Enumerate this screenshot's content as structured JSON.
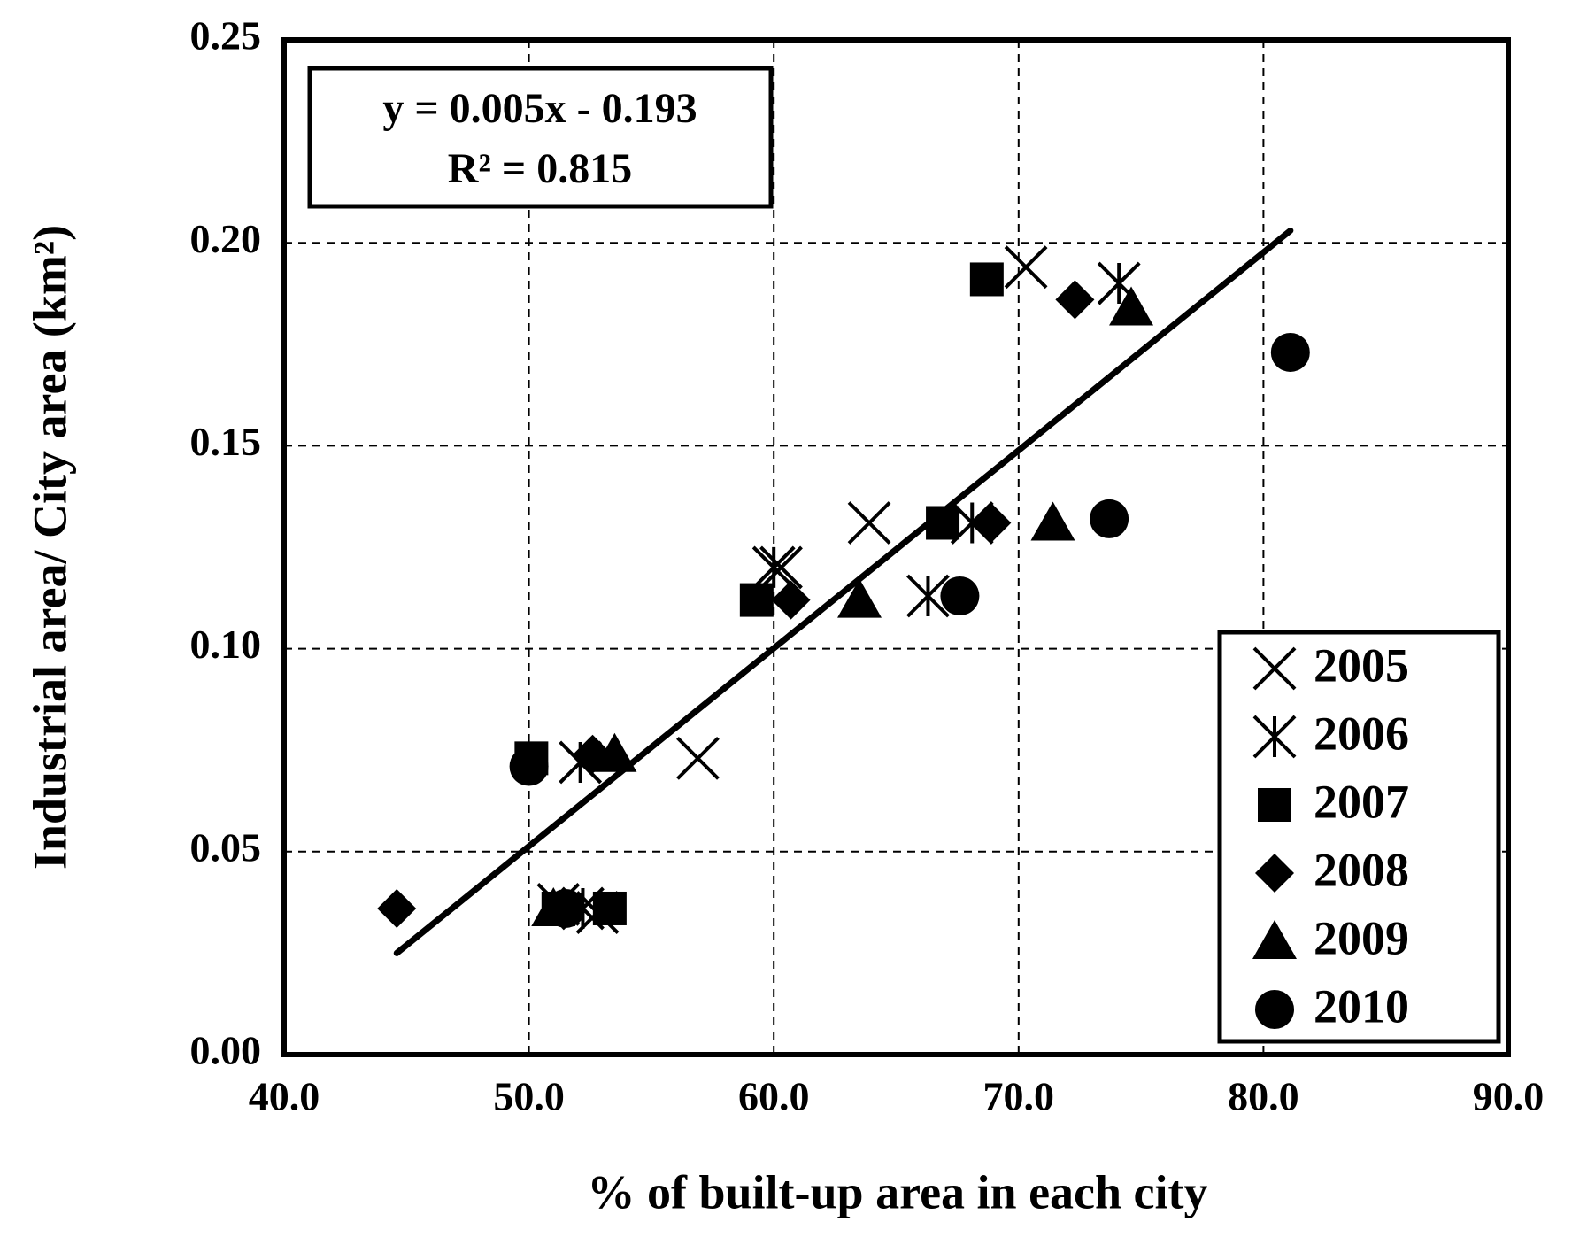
{
  "chart_data": {
    "type": "scatter",
    "x_label": "% of built-up area in each city",
    "y_label": "Industrial area/ City area (km²)",
    "annotation": [
      "y = 0.005x - 0.193",
      "R² = 0.815"
    ],
    "xlim": [
      40,
      90
    ],
    "xticks": [
      {
        "value": 40,
        "label": "40.0"
      },
      {
        "value": 50,
        "label": "50.0"
      },
      {
        "value": 60,
        "label": "60.0"
      },
      {
        "value": 70,
        "label": "70.0"
      },
      {
        "value": 80,
        "label": "80.0"
      },
      {
        "value": 90,
        "label": "90.0"
      }
    ],
    "ylim": [
      0,
      0.25
    ],
    "yticks": [
      {
        "value": 0,
        "label": "0.00"
      },
      {
        "value": 0.05,
        "label": "0.05"
      },
      {
        "value": 0.1,
        "label": "0.10"
      },
      {
        "value": 0.15,
        "label": "0.15"
      },
      {
        "value": 0.2,
        "label": "0.20"
      },
      {
        "value": 0.25,
        "label": "0.25"
      }
    ],
    "grid": true,
    "legend": "lower right",
    "series": [
      {
        "name": "2005",
        "marker": "x",
        "color": "#000000",
        "x": [
          70.3,
          63.9,
          60.3,
          56.9,
          51.2,
          52.8
        ],
        "values": [
          0.194,
          0.131,
          0.12,
          0.073,
          0.037,
          0.035
        ]
      },
      {
        "name": "2006",
        "marker": "star",
        "color": "#000000",
        "x": [
          74.1,
          68.1,
          66.3,
          60.0,
          52.1,
          52.2
        ],
        "values": [
          0.19,
          0.131,
          0.113,
          0.12,
          0.072,
          0.036
        ]
      },
      {
        "name": "2007",
        "marker": "square",
        "color": "#000000",
        "x": [
          68.7,
          66.9,
          59.3,
          50.1,
          53.3,
          51.2
        ],
        "values": [
          0.191,
          0.131,
          0.112,
          0.073,
          0.036,
          0.036
        ]
      },
      {
        "name": "2008",
        "marker": "diamond",
        "color": "#000000",
        "x": [
          72.3,
          68.9,
          60.7,
          52.6,
          44.6,
          51.5
        ],
        "values": [
          0.186,
          0.131,
          0.112,
          0.074,
          0.036,
          0.036
        ]
      },
      {
        "name": "2009",
        "marker": "triangle",
        "color": "#000000",
        "x": [
          74.6,
          71.4,
          63.5,
          53.5,
          51.0
        ],
        "values": [
          0.184,
          0.131,
          0.112,
          0.074,
          0.036
        ]
      },
      {
        "name": "2010",
        "marker": "circle",
        "color": "#000000",
        "x": [
          81.1,
          73.7,
          67.6,
          50.0,
          51.5
        ],
        "values": [
          0.173,
          0.132,
          0.113,
          0.071,
          0.036
        ]
      }
    ],
    "trendline": {
      "color": "#000000",
      "x": [
        44.6,
        81.1
      ],
      "values": [
        0.025,
        0.203
      ]
    }
  }
}
